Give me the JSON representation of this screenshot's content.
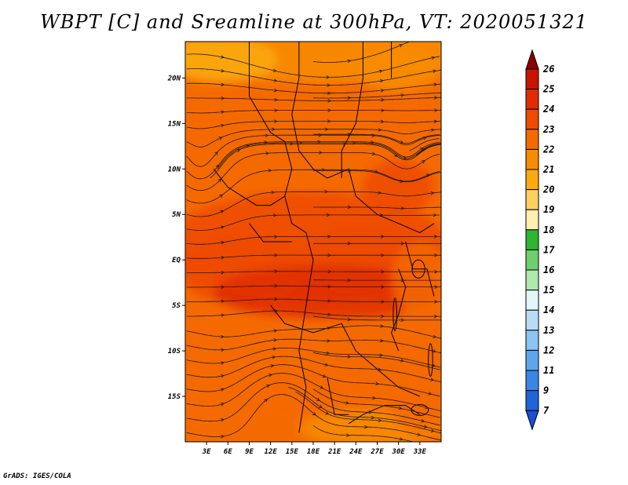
{
  "title": "WBPT [C] and Sreamline at 300hPa, VT: 2020051321",
  "credit": "GrADS: IGES/COLA",
  "map": {
    "lat_range": [
      -20,
      24
    ],
    "lon_range": [
      0,
      36
    ],
    "lat_ticks": [
      {
        "value": 20,
        "label": "20N"
      },
      {
        "value": 15,
        "label": "15N"
      },
      {
        "value": 10,
        "label": "10N"
      },
      {
        "value": 5,
        "label": "5N"
      },
      {
        "value": 0,
        "label": "EQ"
      },
      {
        "value": -5,
        "label": "5S"
      },
      {
        "value": -10,
        "label": "10S"
      },
      {
        "value": -15,
        "label": "15S"
      }
    ],
    "lon_ticks": [
      {
        "value": 3,
        "label": "3E"
      },
      {
        "value": 6,
        "label": "6E"
      },
      {
        "value": 9,
        "label": "9E"
      },
      {
        "value": 12,
        "label": "12E"
      },
      {
        "value": 15,
        "label": "15E"
      },
      {
        "value": 18,
        "label": "18E"
      },
      {
        "value": 21,
        "label": "21E"
      },
      {
        "value": 24,
        "label": "24E"
      },
      {
        "value": 27,
        "label": "27E"
      },
      {
        "value": 30,
        "label": "30E"
      },
      {
        "value": 33,
        "label": "33E"
      }
    ],
    "field_range_C": [
      21,
      24.6
    ],
    "streamline_color": "#1a1a1a",
    "border_color": "#000000"
  },
  "colorbar": {
    "levels": [
      {
        "label": "26",
        "color": "#a50000"
      },
      {
        "label": "25",
        "color": "#c81400"
      },
      {
        "label": "24",
        "color": "#e02d00"
      },
      {
        "label": "23",
        "color": "#ee4a00"
      },
      {
        "label": "22",
        "color": "#f56a00"
      },
      {
        "label": "21",
        "color": "#f88c00"
      },
      {
        "label": "20",
        "color": "#fcaa10"
      },
      {
        "label": "19",
        "color": "#fdd060"
      },
      {
        "label": "18",
        "color": "#fdf0b0"
      },
      {
        "label": "17",
        "color": "#2fb52f"
      },
      {
        "label": "16",
        "color": "#6dd06d"
      },
      {
        "label": "15",
        "color": "#b0e8b0"
      },
      {
        "label": "14",
        "color": "#e3f5f8"
      },
      {
        "label": "13",
        "color": "#b8dcf6"
      },
      {
        "label": "12",
        "color": "#8cc4f2"
      },
      {
        "label": "11",
        "color": "#5ea6ec"
      },
      {
        "label": "9",
        "color": "#3b86e4"
      },
      {
        "label": "7",
        "color": "#1f64d8"
      }
    ],
    "top_arrow_color": "#8c0000",
    "bottom_arrow_color": "#1a50d0"
  }
}
